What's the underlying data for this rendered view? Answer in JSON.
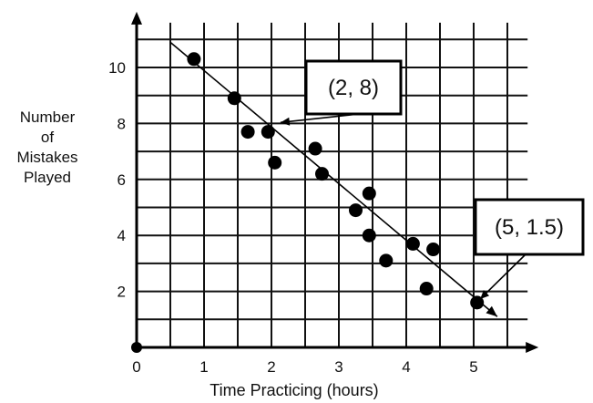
{
  "chart_data": {
    "type": "scatter",
    "xlabel": "Time Practicing (hours)",
    "ylabel_lines": [
      "Number",
      "of",
      "Mistakes",
      "Played"
    ],
    "xlim": [
      0,
      5.8
    ],
    "ylim": [
      0,
      11.6
    ],
    "x_ticks": [
      "0",
      "1",
      "2",
      "3",
      "4",
      "5"
    ],
    "y_ticks": [
      "2",
      "4",
      "6",
      "8",
      "10"
    ],
    "grid": true,
    "points": [
      {
        "x": 0.85,
        "y": 10.3
      },
      {
        "x": 1.45,
        "y": 8.9
      },
      {
        "x": 1.65,
        "y": 7.7
      },
      {
        "x": 1.95,
        "y": 7.7
      },
      {
        "x": 2.05,
        "y": 6.6
      },
      {
        "x": 2.65,
        "y": 7.1
      },
      {
        "x": 2.75,
        "y": 6.2
      },
      {
        "x": 3.25,
        "y": 4.9
      },
      {
        "x": 3.45,
        "y": 5.5
      },
      {
        "x": 3.45,
        "y": 4.0
      },
      {
        "x": 3.7,
        "y": 3.1
      },
      {
        "x": 4.1,
        "y": 3.7
      },
      {
        "x": 4.3,
        "y": 2.1
      },
      {
        "x": 4.4,
        "y": 3.5
      },
      {
        "x": 5.05,
        "y": 1.6
      }
    ],
    "trend_line": {
      "x1": 0.5,
      "y1": 10.9,
      "x2": 5.35,
      "y2": 1.1
    },
    "annotations": [
      {
        "label": "(2, 8)",
        "x": 2,
        "y": 8
      },
      {
        "label": "(5, 1.5)",
        "x": 5,
        "y": 1.5
      }
    ]
  }
}
